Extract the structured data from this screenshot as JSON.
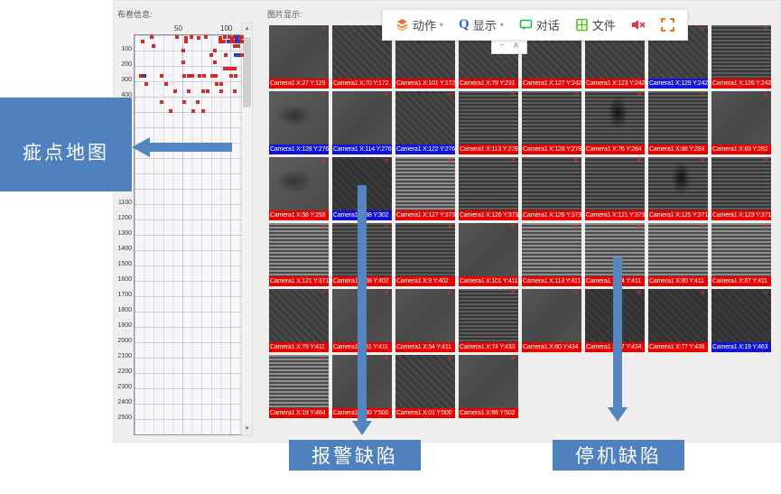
{
  "left_panel": {
    "title": "布卷信息:",
    "scroll_up_glyph": "▲",
    "scroll_down_glyph": "▼"
  },
  "right_panel": {
    "title": "图片显示:",
    "tile_close_glyph": "✕",
    "tiles": [
      {
        "label": "Camera1 X:27 Y:129",
        "color": "red",
        "tex": "p"
      },
      {
        "label": "Camera1 X:70 Y:172",
        "color": "red",
        "tex": "d"
      },
      {
        "label": "Camera1 X:101 Y:172",
        "color": "red",
        "tex": "d"
      },
      {
        "label": "Camera1 X:79 Y:231",
        "color": "red",
        "tex": "d"
      },
      {
        "label": "Camera1 X:127 Y:242",
        "color": "red",
        "tex": "d"
      },
      {
        "label": "Camera1 X:123 Y:242",
        "color": "red",
        "tex": "d"
      },
      {
        "label": "Camera1 X:129 Y:242",
        "color": "blue",
        "tex": "d"
      },
      {
        "label": "Camera1 X:126 Y:242",
        "color": "red",
        "tex": "h"
      },
      {
        "label": "Camera1 X:128 Y:276",
        "color": "blue",
        "tex": "sm"
      },
      {
        "label": "Camera1 X:114 Y:276",
        "color": "blue",
        "tex": "p"
      },
      {
        "label": "Camera1 X:122 Y:276",
        "color": "blue",
        "tex": "d"
      },
      {
        "label": "Camera1 X:113 Y:278",
        "color": "red",
        "tex": "h"
      },
      {
        "label": "Camera1 X:128 Y:278",
        "color": "red",
        "tex": "h"
      },
      {
        "label": "Camera1 X:76 Y:284",
        "color": "red",
        "tex": "hsm"
      },
      {
        "label": "Camera1 X:88 Y:284",
        "color": "red",
        "tex": "h"
      },
      {
        "label": "Camera1 X:83 Y:282",
        "color": "red",
        "tex": "p"
      },
      {
        "label": "Camera1 X:58 Y:293",
        "color": "red",
        "tex": "sm"
      },
      {
        "label": "Camera1 X:98 Y:302",
        "color": "blue",
        "tex": "dk"
      },
      {
        "label": "Camera1 X:127 Y:373",
        "color": "red",
        "tex": "hb"
      },
      {
        "label": "Camera1 X:126 Y:373",
        "color": "red",
        "tex": "h"
      },
      {
        "label": "Camera1 X:126 Y:373",
        "color": "red",
        "tex": "h"
      },
      {
        "label": "Camera1 X:121 Y:373",
        "color": "red",
        "tex": "h"
      },
      {
        "label": "Camera1 X:125 Y:371",
        "color": "red",
        "tex": "hsm"
      },
      {
        "label": "Camera1 X:123 Y:371",
        "color": "red",
        "tex": "h"
      },
      {
        "label": "Camera1 X:121 Y:371",
        "color": "red",
        "tex": "hb"
      },
      {
        "label": "Camera1 X:68 Y:402",
        "color": "red",
        "tex": "h"
      },
      {
        "label": "Camera1 X:9 Y:402",
        "color": "red",
        "tex": "h"
      },
      {
        "label": "Camera1 X:101 Y:411",
        "color": "red",
        "tex": "p"
      },
      {
        "label": "Camera1 X:113 Y:411",
        "color": "red",
        "tex": "hb"
      },
      {
        "label": "Camera1 X:94 Y:411",
        "color": "red",
        "tex": "hb"
      },
      {
        "label": "Camera1 X:80 Y:411",
        "color": "red",
        "tex": "hb"
      },
      {
        "label": "Camera1 X:87 Y:411",
        "color": "red",
        "tex": "hb"
      },
      {
        "label": "Camera1 X:79 Y:411",
        "color": "red",
        "tex": "d"
      },
      {
        "label": "Camera1 X:61 Y:411",
        "color": "red",
        "tex": "p"
      },
      {
        "label": "Camera1 X:54 Y:411",
        "color": "red",
        "tex": "p"
      },
      {
        "label": "Camera1 X:74 Y:433",
        "color": "red",
        "tex": "h"
      },
      {
        "label": "Camera1 X:60 Y:434",
        "color": "red",
        "tex": "p"
      },
      {
        "label": "Camera1 X:57 Y:434",
        "color": "red",
        "tex": "dk"
      },
      {
        "label": "Camera1 X:77 Y:436",
        "color": "red",
        "tex": "dk"
      },
      {
        "label": "Camera1 X:19 Y:463",
        "color": "blue",
        "tex": "dk"
      },
      {
        "label": "Camera1 X:19 Y:464",
        "color": "red",
        "tex": "hb"
      },
      {
        "label": "Camera1 X:30 Y:500",
        "color": "red",
        "tex": "p"
      },
      {
        "label": "Camera1 X:01 Y:500",
        "color": "red",
        "tex": "d"
      },
      {
        "label": "Camera1 X:66 Y:502",
        "color": "red",
        "tex": "p"
      }
    ]
  },
  "toolbar": {
    "items": [
      {
        "label": "动作",
        "icon": "layers-icon",
        "dropdown": true
      },
      {
        "label": "显示",
        "icon": "search-icon",
        "dropdown": true
      },
      {
        "label": "对话",
        "icon": "chat-icon",
        "dropdown": false
      },
      {
        "label": "文件",
        "icon": "file-icon",
        "dropdown": false
      },
      {
        "label": "",
        "icon": "mute-icon",
        "dropdown": false
      },
      {
        "label": "",
        "icon": "fullscreen-icon",
        "dropdown": false
      }
    ],
    "caret_glyph": "▾",
    "search_glyph": "Q",
    "collapse_minus": "−",
    "collapse_caret": "∧"
  },
  "annotations": {
    "defect_map": "疵点地图",
    "alarm": "报警缺陷",
    "stop": "停机缺陷",
    "callout_color": "#4E81BD"
  },
  "chart_data": {
    "type": "scatter",
    "title": "疵点地图",
    "xlabel": "",
    "ylabel": "",
    "xlim": [
      0,
      127
    ],
    "ylim": [
      0,
      2610
    ],
    "grid": true,
    "x_ticks": [
      50,
      100
    ],
    "y_ticks": [
      100,
      200,
      300,
      400,
      500,
      600,
      700,
      800,
      900,
      1000,
      1100,
      1200,
      1300,
      1400,
      1500,
      1600,
      1700,
      1800,
      1900,
      2000,
      2100,
      2200,
      2300,
      2400,
      2500
    ],
    "colors": {
      "stop_point": "#d42a2a",
      "alarm_point": "#2b3cc4"
    },
    "points": [
      [
        20,
        18
      ],
      [
        47,
        18
      ],
      [
        57,
        22
      ],
      [
        63,
        18
      ],
      [
        71,
        22
      ],
      [
        78,
        18
      ],
      [
        94,
        22
      ],
      [
        99,
        18
      ],
      [
        104,
        18
      ],
      [
        107,
        25
      ],
      [
        110,
        18
      ],
      [
        112,
        22,
        "b"
      ],
      [
        114,
        18,
        "b"
      ],
      [
        116,
        25
      ],
      [
        118,
        18
      ],
      [
        10,
        47
      ],
      [
        57,
        47
      ],
      [
        94,
        45
      ],
      [
        98,
        47
      ],
      [
        103,
        45,
        "b"
      ],
      [
        106,
        47
      ],
      [
        109,
        45
      ],
      [
        112,
        47,
        "b"
      ],
      [
        115,
        45,
        "b"
      ],
      [
        118,
        47
      ],
      [
        22,
        76
      ],
      [
        110,
        76
      ],
      [
        114,
        74
      ],
      [
        54,
        106
      ],
      [
        88,
        106
      ],
      [
        84,
        135
      ],
      [
        100,
        135
      ],
      [
        111,
        133,
        "b"
      ],
      [
        114,
        133,
        "b"
      ],
      [
        118,
        135
      ],
      [
        54,
        182
      ],
      [
        88,
        182
      ],
      [
        99,
        224
      ],
      [
        103,
        222
      ],
      [
        106,
        224
      ],
      [
        110,
        222
      ],
      [
        8,
        271
      ],
      [
        12,
        271,
        "b"
      ],
      [
        30,
        271
      ],
      [
        55,
        269
      ],
      [
        60,
        271
      ],
      [
        64,
        269
      ],
      [
        72,
        271
      ],
      [
        76,
        269
      ],
      [
        85,
        271
      ],
      [
        89,
        271
      ],
      [
        106,
        269
      ],
      [
        111,
        271
      ],
      [
        14,
        324
      ],
      [
        35,
        322
      ],
      [
        90,
        324
      ],
      [
        95,
        322
      ],
      [
        45,
        371
      ],
      [
        60,
        371
      ],
      [
        75,
        369
      ],
      [
        80,
        371
      ],
      [
        95,
        371
      ],
      [
        110,
        369
      ],
      [
        30,
        441
      ],
      [
        55,
        441
      ],
      [
        70,
        439
      ],
      [
        40,
        500
      ],
      [
        65,
        500
      ],
      [
        75,
        498
      ]
    ]
  }
}
